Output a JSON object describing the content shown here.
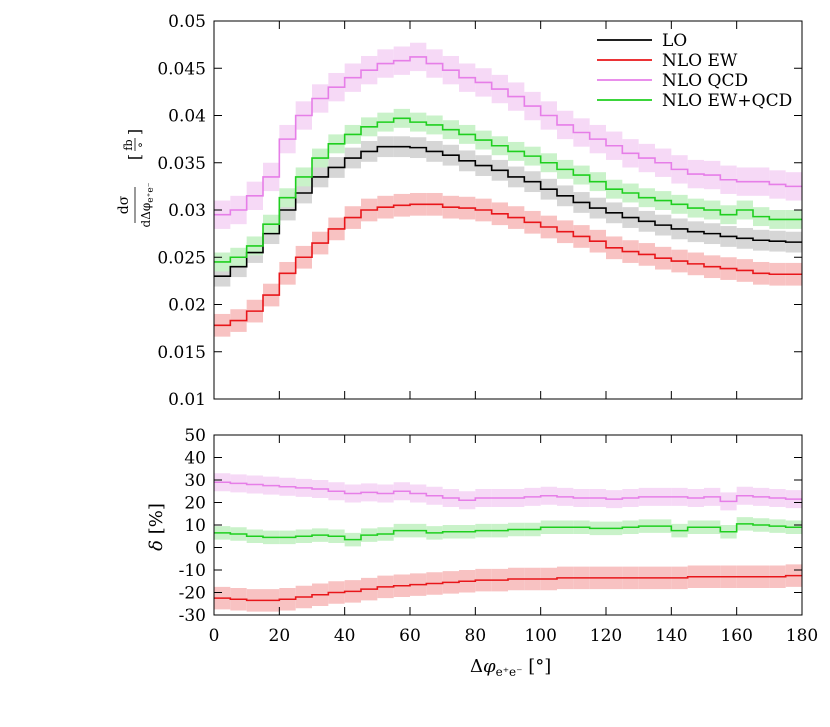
{
  "chart_data": [
    {
      "type": "line",
      "ylabel": "dσ/dΔφe+e− [fb/°]",
      "xlim": [
        0,
        180
      ],
      "ylim": [
        0.01,
        0.05
      ],
      "grid": false,
      "legend_placement": "top-right",
      "xticks": [
        "0",
        "20",
        "40",
        "60",
        "80",
        "100",
        "120",
        "140",
        "160",
        "180"
      ],
      "yticks": [
        "0.01",
        "0.015",
        "0.02",
        "0.025",
        "0.03",
        "0.035",
        "0.04",
        "0.045",
        "0.05"
      ],
      "x": [
        0,
        5,
        10,
        15,
        20,
        25,
        30,
        35,
        40,
        45,
        50,
        55,
        60,
        65,
        70,
        75,
        80,
        85,
        90,
        95,
        100,
        105,
        110,
        115,
        120,
        125,
        130,
        135,
        140,
        145,
        150,
        155,
        160,
        165,
        170,
        175
      ],
      "series": [
        {
          "name": "LO",
          "color": "#000000",
          "band_color": "#d6d6d6",
          "values": [
            0.023,
            0.024,
            0.0255,
            0.0275,
            0.03,
            0.0318,
            0.0335,
            0.0345,
            0.0355,
            0.0362,
            0.0367,
            0.0367,
            0.0366,
            0.0362,
            0.0358,
            0.0352,
            0.0347,
            0.0342,
            0.0335,
            0.033,
            0.0322,
            0.0315,
            0.0308,
            0.0302,
            0.0297,
            0.0292,
            0.0288,
            0.0284,
            0.028,
            0.0277,
            0.0275,
            0.0272,
            0.027,
            0.0268,
            0.0267,
            0.0266
          ],
          "band": 0.0011
        },
        {
          "name": "NLO EW",
          "color": "#e8161a",
          "band_color": "#f8c2c2",
          "values": [
            0.0178,
            0.0183,
            0.0193,
            0.021,
            0.0233,
            0.025,
            0.0265,
            0.028,
            0.0292,
            0.03,
            0.0303,
            0.0305,
            0.0306,
            0.0306,
            0.0303,
            0.0302,
            0.03,
            0.0296,
            0.0292,
            0.0287,
            0.0282,
            0.0277,
            0.0272,
            0.0267,
            0.026,
            0.0256,
            0.0253,
            0.0249,
            0.0246,
            0.0243,
            0.024,
            0.0238,
            0.0236,
            0.0233,
            0.0232,
            0.0232
          ],
          "band": 0.0012
        },
        {
          "name": "NLO QCD",
          "color": "#e67ee8",
          "band_color": "#f6d9f6",
          "values": [
            0.0295,
            0.03,
            0.0315,
            0.0335,
            0.0375,
            0.04,
            0.0418,
            0.043,
            0.044,
            0.0448,
            0.0455,
            0.0458,
            0.0462,
            0.0455,
            0.0448,
            0.044,
            0.0435,
            0.0428,
            0.042,
            0.041,
            0.04,
            0.039,
            0.0382,
            0.0375,
            0.0368,
            0.036,
            0.0355,
            0.035,
            0.0343,
            0.0338,
            0.0337,
            0.0332,
            0.033,
            0.033,
            0.0327,
            0.0325
          ],
          "band": 0.0015
        },
        {
          "name": "NLO EW+QCD",
          "color": "#1fcf1f",
          "band_color": "#c9f2c9",
          "values": [
            0.0245,
            0.025,
            0.0262,
            0.0285,
            0.0313,
            0.0335,
            0.0355,
            0.037,
            0.038,
            0.0388,
            0.0393,
            0.0397,
            0.0393,
            0.039,
            0.0385,
            0.038,
            0.0374,
            0.0368,
            0.0362,
            0.0357,
            0.035,
            0.0343,
            0.0337,
            0.033,
            0.0322,
            0.0318,
            0.0313,
            0.031,
            0.0306,
            0.0302,
            0.03,
            0.0295,
            0.03,
            0.0293,
            0.029,
            0.029
          ],
          "band": 0.001
        }
      ]
    },
    {
      "type": "line",
      "xlabel": "Δφe+e− [°]",
      "ylabel": "δ [%]",
      "xlim": [
        0,
        180
      ],
      "ylim": [
        -30,
        50
      ],
      "grid": false,
      "xticks": [
        "0",
        "20",
        "40",
        "60",
        "80",
        "100",
        "120",
        "140",
        "160",
        "180"
      ],
      "yticks": [
        "-30",
        "-20",
        "-10",
        "0",
        "10",
        "20",
        "30",
        "40",
        "50"
      ],
      "x": [
        0,
        5,
        10,
        15,
        20,
        25,
        30,
        35,
        40,
        45,
        50,
        55,
        60,
        65,
        70,
        75,
        80,
        85,
        90,
        95,
        100,
        105,
        110,
        115,
        120,
        125,
        130,
        135,
        140,
        145,
        150,
        155,
        160,
        165,
        170,
        175
      ],
      "series": [
        {
          "name": "NLO EW",
          "color": "#e8161a",
          "band_color": "#f8c2c2",
          "values": [
            -22.5,
            -23,
            -23.5,
            -23.5,
            -23,
            -22,
            -21,
            -20,
            -19.5,
            -18.5,
            -17.5,
            -17,
            -16.5,
            -16,
            -15.5,
            -15,
            -14.5,
            -14.5,
            -14,
            -14,
            -14,
            -13.5,
            -13.5,
            -13.5,
            -13.5,
            -13.5,
            -13.5,
            -13.5,
            -13.5,
            -13,
            -13,
            -13,
            -13,
            -13,
            -13,
            -12.5
          ],
          "band": 5
        },
        {
          "name": "NLO QCD",
          "color": "#e67ee8",
          "band_color": "#f6d9f6",
          "values": [
            29,
            28.5,
            28,
            27.5,
            27,
            26.5,
            26,
            25,
            24,
            24.5,
            24,
            25,
            24,
            23,
            22,
            21,
            22,
            22,
            22,
            22.5,
            23,
            22.5,
            22,
            22,
            21.5,
            22,
            22.5,
            22.5,
            22.5,
            22,
            22.5,
            20.5,
            23,
            22.5,
            22,
            21.5
          ],
          "band": 4
        },
        {
          "name": "NLO EW+QCD",
          "color": "#1fcf1f",
          "band_color": "#c9f2c9",
          "values": [
            6.5,
            6,
            5,
            4.5,
            4.5,
            5,
            5.5,
            5,
            3.5,
            5.5,
            6,
            7.5,
            7.5,
            6.5,
            7,
            7,
            7.5,
            7.5,
            8,
            8,
            9,
            9,
            9,
            8.5,
            8.5,
            9,
            9.5,
            9.5,
            7.5,
            9,
            9,
            7,
            10.5,
            10,
            9.5,
            9
          ],
          "band": 3
        }
      ]
    }
  ]
}
